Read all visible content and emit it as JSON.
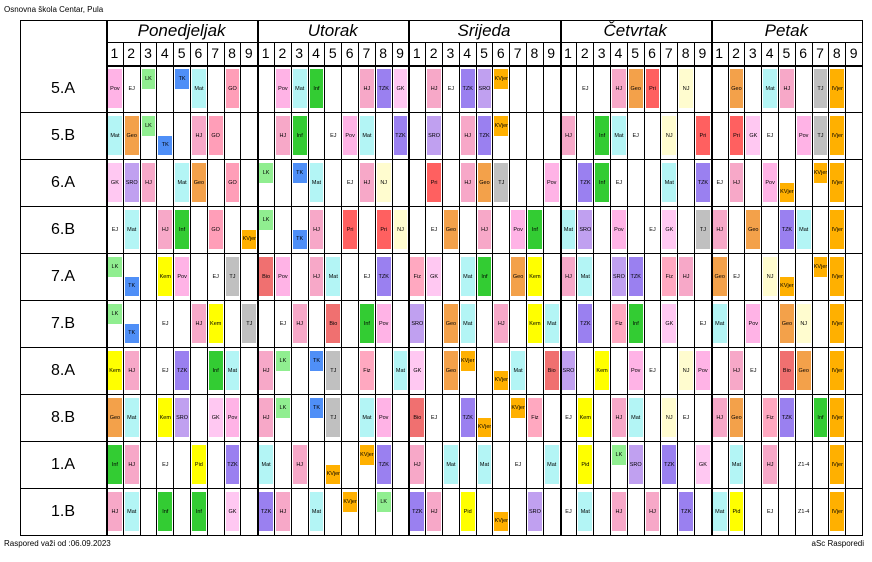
{
  "school_name": "Osnovna škola Centar, Pula",
  "footer_left": "Raspored važi od :06.09.2023",
  "footer_right": "aSc Rasporedi",
  "days": [
    "Ponedjeljak",
    "Utorak",
    "Srijeda",
    "Četvrtak",
    "Petak"
  ],
  "periods": [
    "1",
    "2",
    "3",
    "4",
    "5",
    "6",
    "7",
    "8",
    "9"
  ],
  "classes": [
    "5.A",
    "5.B",
    "6.A",
    "6.B",
    "7.A",
    "7.B",
    "8.A",
    "8.B",
    "1.A",
    "1.B"
  ],
  "subject_colors": {
    "LK": "#90ee90",
    "TK": "#4f8ff7",
    "Mat": "#b3f5f5",
    "EJ": "#ffffff",
    "HJ": "#f7a8c8",
    "Pov": "#ffb3e6",
    "GO": "#ff9eb8",
    "Inf": "#33cc33",
    "Geo": "#f3a14a",
    "Bio": "#f07070",
    "SRO": "#c0a0f0",
    "TZK": "#9a80f0",
    "GK": "#ffc8f2",
    "Kem": "#ffff00",
    "Fiz": "#ffa8c0",
    "Pri": "#ff6060",
    "NJ": "#fffccf",
    "IVjer": "#ffb000",
    "KVjer": "#ffb000",
    "TJ": "#c0c0c0",
    "Z1-4": "#ffffff",
    "Pid": "#ffff00"
  },
  "timetable": [
    [
      "Pov",
      "EJ",
      "LK",
      "",
      "TK",
      "Mat",
      "",
      "GO",
      "",
      "",
      "Pov",
      "Mat",
      "Inf",
      "",
      "HJ",
      "TZK",
      "GK",
      "",
      "HJ",
      "EJ",
      "TZK",
      "SRO",
      "KVjer",
      "",
      "",
      "",
      "",
      "EJ",
      "HJ",
      "Geo",
      "Pri",
      "",
      "NJ",
      "",
      "",
      "Geo",
      "",
      "Mat",
      "HJ",
      "",
      "TJ",
      "IVjer"
    ],
    [
      "Mat",
      "Geo",
      "LK",
      "TK",
      "HJ",
      "GO",
      "",
      "",
      "HJ",
      "Inf",
      "EJ",
      "Pov",
      "Mat",
      "TZK",
      "",
      "SRO",
      "HJ",
      "TZK",
      "KVjer",
      "",
      "",
      "HJ",
      "Inf",
      "Mat",
      "EJ",
      "NJ",
      "",
      "Pri",
      "Pri",
      "GK",
      "EJ",
      "Pov",
      "TJ",
      "IVjer"
    ],
    [
      "GK",
      "SRO",
      "HJ",
      "Mat",
      "Geo",
      "GO",
      "",
      "LK",
      "TK",
      "Mat",
      "EJ",
      "HJ",
      "NJ",
      "",
      "Pri",
      "HJ",
      "Geo",
      "TJ",
      "",
      "Pov",
      "TZK",
      "Inf",
      "EJ",
      "",
      "Mat",
      "TZK",
      "EJ",
      "HJ",
      "Pov",
      "KVjer",
      "KVjer",
      "IVjer"
    ],
    [
      "EJ",
      "Mat",
      "HJ",
      "Inf",
      "GO",
      "KVjer",
      "LK",
      "TK",
      "HJ",
      "Pri",
      "Pri",
      "NJ",
      "EJ",
      "Geo",
      "HJ",
      "Pov",
      "Inf",
      "Mat",
      "SRO",
      "Pov",
      "EJ",
      "GK",
      "TJ",
      "HJ",
      "Geo",
      "TZK",
      "Mat",
      "IVjer"
    ],
    [
      "LK",
      "TK",
      "Kem",
      "Pov",
      "EJ",
      "TJ",
      "Bio",
      "Pov",
      "HJ",
      "Mat",
      "EJ",
      "TZK",
      "Fiz",
      "GK",
      "Mat",
      "Inf",
      "Geo",
      "Kem",
      "HJ",
      "Mat",
      "SRO",
      "TZK",
      "Fiz",
      "HJ",
      "Geo",
      "EJ",
      "NJ",
      "KVjer",
      "KVjer",
      "IVjer"
    ],
    [
      "LK",
      "TK",
      "EJ",
      "HJ",
      "Kem",
      "TJ",
      "EJ",
      "HJ",
      "Bio",
      "Inf",
      "Pov",
      "SRO",
      "Geo",
      "Mat",
      "HJ",
      "Kem",
      "Mat",
      "TZK",
      "Fiz",
      "Inf",
      "GK",
      "EJ",
      "Mat",
      "Pov",
      "Geo",
      "NJ",
      "IVjer"
    ],
    [
      "Kem",
      "HJ",
      "EJ",
      "TZK",
      "Inf",
      "Mat",
      "HJ",
      "LK",
      "TK",
      "TJ",
      "Fiz",
      "Mat",
      "GK",
      "Geo",
      "KVjer",
      "KVjer",
      "Mat",
      "Bio",
      "SRO",
      "Kem",
      "Pov",
      "EJ",
      "NJ",
      "Pov",
      "HJ",
      "EJ",
      "Bio",
      "Geo",
      "IVjer"
    ],
    [
      "Geo",
      "Mat",
      "Kem",
      "SRO",
      "GK",
      "Pov",
      "HJ",
      "LK",
      "TK",
      "TJ",
      "Mat",
      "Pov",
      "Bio",
      "EJ",
      "TZK",
      "KVjer",
      "KVjer",
      "Fiz",
      "EJ",
      "Kem",
      "HJ",
      "Mat",
      "NJ",
      "EJ",
      "HJ",
      "Geo",
      "Fiz",
      "TZK",
      "Inf",
      "IVjer"
    ],
    [
      "Inf",
      "HJ",
      "EJ",
      "Pid",
      "TZK",
      "Mat",
      "HJ",
      "KVjer",
      "KVjer",
      "TZK",
      "HJ",
      "Mat",
      "Mat",
      "EJ",
      "Mat",
      "Pid",
      "LK",
      "SRO",
      "TZK",
      "GK",
      "Mat",
      "HJ",
      "Z1-4",
      "IVjer"
    ],
    [
      "HJ",
      "Mat",
      "Inf",
      "Inf",
      "GK",
      "TZK",
      "HJ",
      "Mat",
      "KVjer",
      "LK",
      "TZK",
      "HJ",
      "Pid",
      "KVjer",
      "SRO",
      "EJ",
      "Mat",
      "HJ",
      "HJ",
      "TZK",
      "Mat",
      "Pid",
      "EJ",
      "Z1-4",
      "IVjer"
    ]
  ]
}
